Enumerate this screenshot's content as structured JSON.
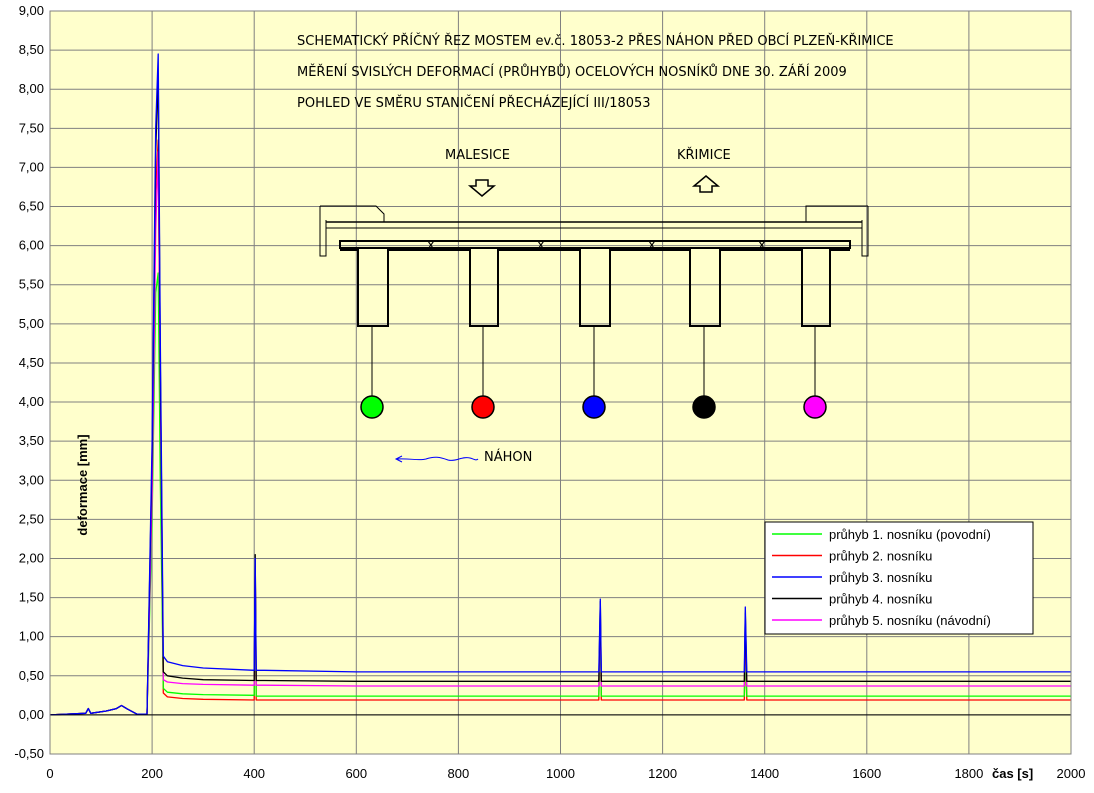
{
  "chart_data": {
    "type": "line",
    "xlabel": "čas [s]",
    "ylabel": "deformace [mm]",
    "xlim": [
      0,
      2000
    ],
    "ylim": [
      -0.5,
      9.0
    ],
    "x_ticks": [
      "0",
      "200",
      "400",
      "600",
      "800",
      "1000",
      "1200",
      "1400",
      "1600",
      "1800",
      "2000"
    ],
    "y_ticks": [
      "-0,50",
      "0,00",
      "0,50",
      "1,00",
      "1,50",
      "2,00",
      "2,50",
      "3,00",
      "3,50",
      "4,00",
      "4,50",
      "5,00",
      "5,50",
      "6,00",
      "6,50",
      "7,00",
      "7,50",
      "8,00",
      "8,50",
      "9,00"
    ],
    "grid": true,
    "legend_position": "bottom-right",
    "plot_background": "#ffffcc",
    "series": [
      {
        "name": "průhyb 1. nosníku (povodní)",
        "color": "#00ff00",
        "x": [
          0,
          70,
          75,
          80,
          110,
          130,
          140,
          150,
          170,
          190,
          200,
          207,
          212,
          216,
          222,
          230,
          260,
          300,
          400,
          402,
          404,
          420,
          600,
          1000,
          1075,
          1078,
          1080,
          1360,
          1362,
          1365,
          1500,
          2000
        ],
        "y": [
          0.0,
          0.02,
          0.08,
          0.02,
          0.05,
          0.08,
          0.12,
          0.08,
          0.01,
          0.01,
          2.5,
          5.4,
          5.65,
          3.0,
          0.34,
          0.29,
          0.27,
          0.26,
          0.25,
          1.8,
          0.24,
          0.24,
          0.24,
          0.24,
          0.24,
          1.2,
          0.24,
          0.24,
          0.9,
          0.24,
          0.24,
          0.24
        ]
      },
      {
        "name": "průhyb 2. nosníku",
        "color": "#ff0000",
        "x": [
          0,
          70,
          75,
          80,
          110,
          130,
          140,
          150,
          170,
          190,
          200,
          207,
          212,
          216,
          222,
          230,
          260,
          300,
          400,
          402,
          404,
          420,
          600,
          1000,
          1075,
          1078,
          1080,
          1360,
          1362,
          1365,
          1500,
          2000
        ],
        "y": [
          0.0,
          0.02,
          0.08,
          0.02,
          0.05,
          0.08,
          0.12,
          0.08,
          0.01,
          0.01,
          3.0,
          6.7,
          7.35,
          4.0,
          0.28,
          0.23,
          0.21,
          0.2,
          0.19,
          1.9,
          0.19,
          0.19,
          0.19,
          0.19,
          0.19,
          1.25,
          0.19,
          0.19,
          0.95,
          0.19,
          0.19,
          0.19
        ]
      },
      {
        "name": "průhyb 3. nosníku",
        "color": "#0000ff",
        "x": [
          0,
          70,
          75,
          80,
          110,
          130,
          140,
          150,
          170,
          190,
          200,
          207,
          212,
          216,
          222,
          230,
          260,
          300,
          400,
          402,
          404,
          420,
          600,
          1000,
          1075,
          1078,
          1080,
          1360,
          1362,
          1365,
          1500,
          2000
        ],
        "y": [
          0.0,
          0.02,
          0.08,
          0.02,
          0.05,
          0.08,
          0.12,
          0.08,
          0.01,
          0.01,
          3.5,
          7.5,
          8.45,
          4.8,
          0.75,
          0.68,
          0.63,
          0.6,
          0.57,
          2.0,
          0.57,
          0.57,
          0.55,
          0.55,
          0.55,
          1.48,
          0.55,
          0.55,
          1.38,
          0.55,
          0.55,
          0.55
        ]
      },
      {
        "name": "průhyb 4. nosníku",
        "color": "#000000",
        "x": [
          0,
          70,
          75,
          80,
          110,
          130,
          140,
          150,
          170,
          190,
          200,
          207,
          212,
          216,
          222,
          230,
          260,
          300,
          400,
          402,
          404,
          420,
          600,
          1000,
          1075,
          1078,
          1080,
          1360,
          1362,
          1365,
          1500,
          2000
        ],
        "y": [
          0.0,
          0.02,
          0.08,
          0.02,
          0.05,
          0.08,
          0.12,
          0.08,
          0.01,
          0.01,
          3.3,
          7.2,
          8.2,
          4.5,
          0.55,
          0.5,
          0.47,
          0.45,
          0.44,
          2.05,
          0.44,
          0.44,
          0.43,
          0.43,
          0.43,
          1.45,
          0.43,
          0.43,
          1.3,
          0.43,
          0.43,
          0.43
        ]
      },
      {
        "name": "průhyb 5. nosníku (návodní)",
        "color": "#ff00ff",
        "x": [
          0,
          70,
          75,
          80,
          110,
          130,
          140,
          150,
          170,
          190,
          200,
          207,
          212,
          216,
          222,
          230,
          260,
          300,
          400,
          402,
          404,
          420,
          600,
          1000,
          1075,
          1078,
          1080,
          1360,
          1362,
          1365,
          1500,
          2000
        ],
        "y": [
          0.0,
          0.02,
          0.08,
          0.02,
          0.05,
          0.08,
          0.12,
          0.08,
          0.01,
          0.01,
          2.8,
          6.2,
          7.2,
          4.2,
          0.45,
          0.42,
          0.4,
          0.39,
          0.38,
          1.9,
          0.38,
          0.38,
          0.37,
          0.37,
          0.37,
          1.3,
          0.37,
          0.37,
          1.1,
          0.37,
          0.37,
          0.37
        ]
      }
    ]
  },
  "annotation": {
    "title_lines": [
      "SCHEMATICKÝ PŘÍČNÝ ŘEZ MOSTEM ev.č. 18053-2 PŘES NÁHON PŘED OBCÍ PLZEŇ-KŘIMICE",
      "MĚŘENÍ SVISLÝCH DEFORMACÍ (PRŮHYBŮ) OCELOVÝCH NOSNÍKŮ DNE 30. ZÁŘÍ 2009",
      "POHLED VE SMĚRU STANIČENÍ PŘECHÁZEJÍCÍ III/18053"
    ],
    "left_direction": "MALESICE",
    "right_direction": "KŘIMICE",
    "river_label": "NÁHON",
    "sensor_colors": [
      "#00ff00",
      "#ff0000",
      "#0000ff",
      "#000000",
      "#ff00ff"
    ]
  }
}
